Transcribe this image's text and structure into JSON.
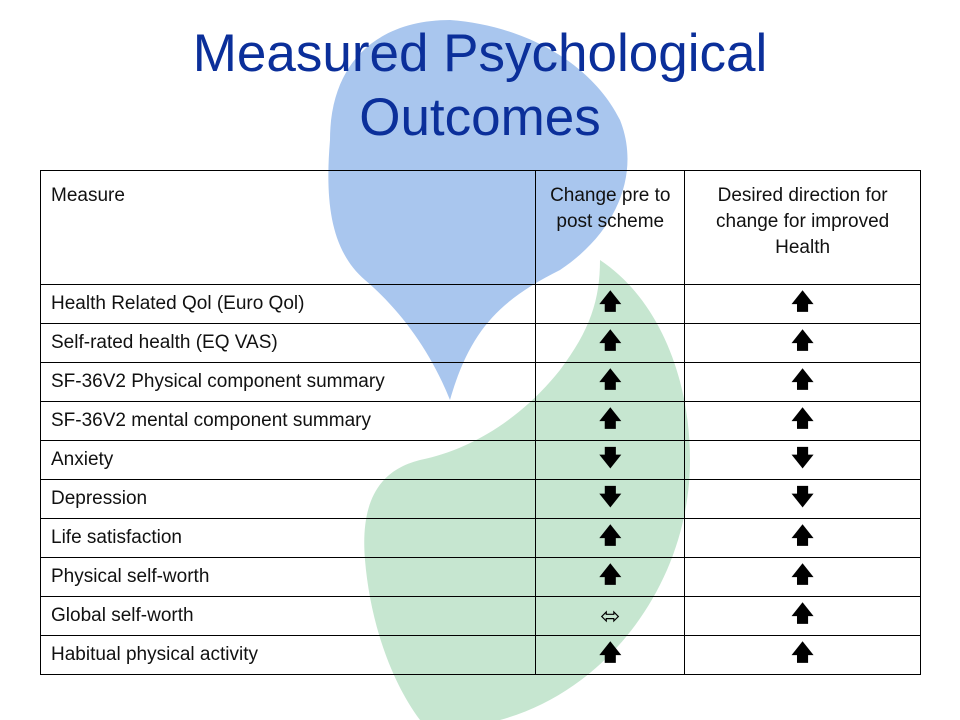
{
  "slide": {
    "title_line1": "Measured Psychological",
    "title_line2": "Outcomes"
  },
  "colors": {
    "title": "#0b2f9a",
    "logo_blue": "#a9c6ee",
    "logo_green": "#c6e6d0"
  },
  "table": {
    "headers": [
      "Measure",
      "Change pre to post scheme",
      "Desired direction for change for improved Health"
    ],
    "rows": [
      {
        "measure": "Health Related Qol (Euro Qol)",
        "change": "up",
        "desired": "up",
        "change_glyph": "🡅",
        "desired_glyph": "🡅"
      },
      {
        "measure": "Self-rated health (EQ VAS)",
        "change": "up",
        "desired": "up",
        "change_glyph": "🡅",
        "desired_glyph": "🡅"
      },
      {
        "measure": "SF-36V2 Physical component summary",
        "change": "up",
        "desired": "up",
        "change_glyph": "🡅",
        "desired_glyph": "🡅"
      },
      {
        "measure": "SF-36V2 mental component summary",
        "change": "up",
        "desired": "up",
        "change_glyph": "🡅",
        "desired_glyph": "🡅"
      },
      {
        "measure": "Anxiety",
        "change": "down",
        "desired": "down",
        "change_glyph": "🡇",
        "desired_glyph": "🡇"
      },
      {
        "measure": "Depression",
        "change": "down",
        "desired": "down",
        "change_glyph": "🡇",
        "desired_glyph": "🡇"
      },
      {
        "measure": "Life satisfaction",
        "change": "up",
        "desired": "up",
        "change_glyph": "🡅",
        "desired_glyph": "🡅"
      },
      {
        "measure": "Physical self-worth",
        "change": "up",
        "desired": "up",
        "change_glyph": "🡅",
        "desired_glyph": "🡅"
      },
      {
        "measure": "Global self-worth",
        "change": "no-change",
        "desired": "up",
        "change_glyph": "⬄",
        "desired_glyph": "🡅"
      },
      {
        "measure": "Habitual physical activity",
        "change": "up",
        "desired": "up",
        "change_glyph": "🡅",
        "desired_glyph": "🡅"
      }
    ]
  }
}
